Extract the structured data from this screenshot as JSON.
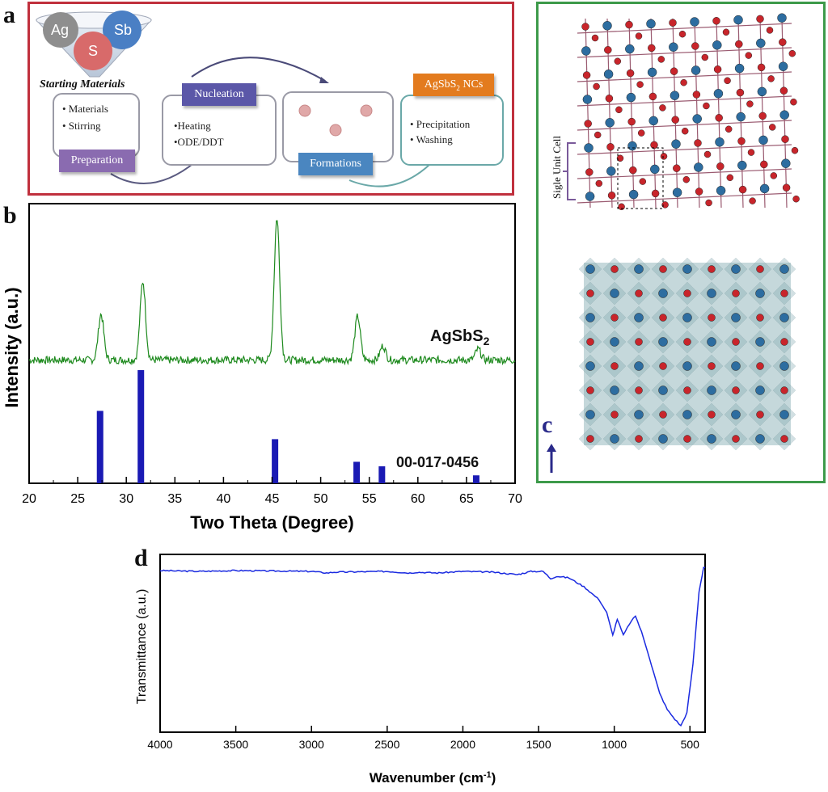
{
  "panel_a": {
    "letter": "a",
    "circles": {
      "ag": "Ag",
      "sb": "Sb",
      "s": "S"
    },
    "starting_materials": "Starting Materials",
    "preparation_items": [
      "• Materials",
      "• Stirring"
    ],
    "preparation_label": "Preparation",
    "nucleation_label": "Nucleation",
    "nucleation_items": [
      "•Heating",
      "•ODE/DDT"
    ],
    "formations_label": "Formations",
    "product_label": "AgSbS",
    "product_sub": "2",
    "product_suffix": " NCs",
    "product_items": [
      "• Precipitation",
      "• Washing"
    ],
    "colors": {
      "border": "#c0303d",
      "preparation": "#8a6bb0",
      "nucleation": "#5b57a8",
      "formations": "#4a86c0",
      "product": "#e37b1e"
    }
  },
  "panel_b": {
    "letter": "b",
    "sample_label_main": "AgSbS",
    "sample_label_sub": "2",
    "reference_label": "00-017-0456"
  },
  "panel_c": {
    "letter": "c",
    "unit_cell_label": "Sigle Unit Cell",
    "axis_label": "c",
    "colors": {
      "border": "#3d9a4a",
      "atom_red": "#c8252b",
      "atom_blue": "#2d6da0",
      "bond": "#9a5a70",
      "polyhedra": "#7fa8b0"
    }
  },
  "panel_d": {
    "letter": "d"
  },
  "chart_data": [
    {
      "type": "line",
      "panel": "b",
      "xlabel": "Two Theta (Degree)",
      "ylabel": "Intensity (a.u.)",
      "xlim": [
        20,
        70
      ],
      "xticks": [
        "20",
        "25",
        "30",
        "35",
        "40",
        "45",
        "50",
        "55",
        "60",
        "65",
        "70"
      ],
      "series": [
        {
          "name": "AgSbS2",
          "color": "#1e8a1e",
          "baseline": 0.1,
          "peaks": [
            {
              "x": 27.4,
              "height": 0.42
            },
            {
              "x": 31.7,
              "height": 0.72
            },
            {
              "x": 45.5,
              "height": 1.3
            },
            {
              "x": 53.8,
              "height": 0.4
            },
            {
              "x": 56.4,
              "height": 0.13
            },
            {
              "x": 66.2,
              "height": 0.1
            }
          ]
        },
        {
          "name": "00-017-0456",
          "type": "bar",
          "color": "#1a1ab4",
          "x": [
            27.3,
            31.5,
            45.3,
            53.7,
            56.3,
            66.0
          ],
          "values": [
            0.64,
            1.0,
            0.39,
            0.19,
            0.15,
            0.07
          ]
        }
      ],
      "grid": false
    },
    {
      "type": "line",
      "panel": "d",
      "xlabel": "Wavenumber (cm",
      "xlabel_sup": "-1",
      "xlabel_end": ")",
      "ylabel": "Transmittance (a.u.)",
      "xlim": [
        4000,
        400
      ],
      "xticks": [
        "4000",
        "3500",
        "3000",
        "2500",
        "2000",
        "1500",
        "1000",
        "500"
      ],
      "series": [
        {
          "color": "#1a2ae0",
          "x": [
            4000,
            3750,
            3500,
            3000,
            2900,
            2850,
            2500,
            2350,
            2300,
            2170,
            2000,
            1800,
            1640,
            1550,
            1470,
            1420,
            1380,
            1300,
            1200,
            1100,
            1050,
            1010,
            980,
            940,
            900,
            860,
            820,
            780,
            740,
            700,
            650,
            600,
            560,
            520,
            480,
            440,
            410,
            400
          ],
          "values": [
            0.98,
            0.975,
            0.98,
            0.975,
            0.965,
            0.97,
            0.975,
            0.965,
            0.97,
            0.965,
            0.975,
            0.97,
            0.955,
            0.975,
            0.975,
            0.93,
            0.945,
            0.935,
            0.88,
            0.8,
            0.72,
            0.58,
            0.68,
            0.58,
            0.65,
            0.7,
            0.6,
            0.48,
            0.35,
            0.22,
            0.12,
            0.06,
            0.02,
            0.1,
            0.4,
            0.85,
            1.0,
            1.0
          ]
        }
      ],
      "grid": false
    }
  ]
}
